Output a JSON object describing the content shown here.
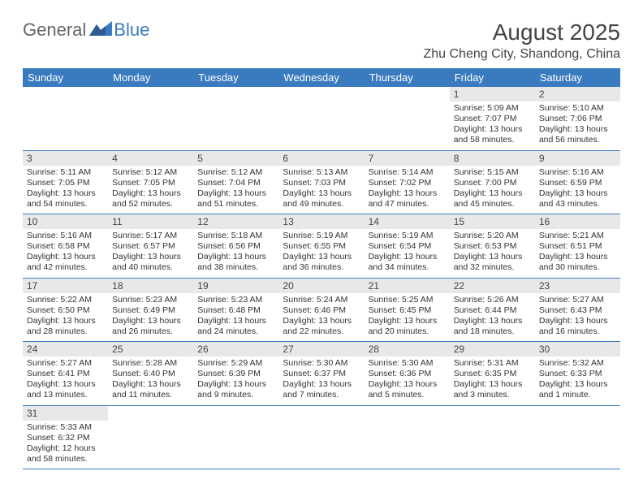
{
  "logo": {
    "part1": "General",
    "part2": "Blue"
  },
  "title": "August 2025",
  "location": "Zhu Cheng City, Shandong, China",
  "colors": {
    "header_bg": "#3a7bbf",
    "header_text": "#ffffff",
    "daynum_bg": "#e8e8e8",
    "border": "#3a7bbf",
    "text": "#333333",
    "page_bg": "#ffffff"
  },
  "fonts": {
    "title_size_pt": 28,
    "location_size_pt": 16,
    "dayhead_size_pt": 13,
    "daynum_size_pt": 12,
    "cell_size_pt": 10.5
  },
  "daysOfWeek": [
    "Sunday",
    "Monday",
    "Tuesday",
    "Wednesday",
    "Thursday",
    "Friday",
    "Saturday"
  ],
  "grid": [
    [
      null,
      null,
      null,
      null,
      null,
      {
        "n": "1",
        "sr": "5:09 AM",
        "ss": "7:07 PM",
        "dl": "13 hours and 58 minutes."
      },
      {
        "n": "2",
        "sr": "5:10 AM",
        "ss": "7:06 PM",
        "dl": "13 hours and 56 minutes."
      }
    ],
    [
      {
        "n": "3",
        "sr": "5:11 AM",
        "ss": "7:05 PM",
        "dl": "13 hours and 54 minutes."
      },
      {
        "n": "4",
        "sr": "5:12 AM",
        "ss": "7:05 PM",
        "dl": "13 hours and 52 minutes."
      },
      {
        "n": "5",
        "sr": "5:12 AM",
        "ss": "7:04 PM",
        "dl": "13 hours and 51 minutes."
      },
      {
        "n": "6",
        "sr": "5:13 AM",
        "ss": "7:03 PM",
        "dl": "13 hours and 49 minutes."
      },
      {
        "n": "7",
        "sr": "5:14 AM",
        "ss": "7:02 PM",
        "dl": "13 hours and 47 minutes."
      },
      {
        "n": "8",
        "sr": "5:15 AM",
        "ss": "7:00 PM",
        "dl": "13 hours and 45 minutes."
      },
      {
        "n": "9",
        "sr": "5:16 AM",
        "ss": "6:59 PM",
        "dl": "13 hours and 43 minutes."
      }
    ],
    [
      {
        "n": "10",
        "sr": "5:16 AM",
        "ss": "6:58 PM",
        "dl": "13 hours and 42 minutes."
      },
      {
        "n": "11",
        "sr": "5:17 AM",
        "ss": "6:57 PM",
        "dl": "13 hours and 40 minutes."
      },
      {
        "n": "12",
        "sr": "5:18 AM",
        "ss": "6:56 PM",
        "dl": "13 hours and 38 minutes."
      },
      {
        "n": "13",
        "sr": "5:19 AM",
        "ss": "6:55 PM",
        "dl": "13 hours and 36 minutes."
      },
      {
        "n": "14",
        "sr": "5:19 AM",
        "ss": "6:54 PM",
        "dl": "13 hours and 34 minutes."
      },
      {
        "n": "15",
        "sr": "5:20 AM",
        "ss": "6:53 PM",
        "dl": "13 hours and 32 minutes."
      },
      {
        "n": "16",
        "sr": "5:21 AM",
        "ss": "6:51 PM",
        "dl": "13 hours and 30 minutes."
      }
    ],
    [
      {
        "n": "17",
        "sr": "5:22 AM",
        "ss": "6:50 PM",
        "dl": "13 hours and 28 minutes."
      },
      {
        "n": "18",
        "sr": "5:23 AM",
        "ss": "6:49 PM",
        "dl": "13 hours and 26 minutes."
      },
      {
        "n": "19",
        "sr": "5:23 AM",
        "ss": "6:48 PM",
        "dl": "13 hours and 24 minutes."
      },
      {
        "n": "20",
        "sr": "5:24 AM",
        "ss": "6:46 PM",
        "dl": "13 hours and 22 minutes."
      },
      {
        "n": "21",
        "sr": "5:25 AM",
        "ss": "6:45 PM",
        "dl": "13 hours and 20 minutes."
      },
      {
        "n": "22",
        "sr": "5:26 AM",
        "ss": "6:44 PM",
        "dl": "13 hours and 18 minutes."
      },
      {
        "n": "23",
        "sr": "5:27 AM",
        "ss": "6:43 PM",
        "dl": "13 hours and 16 minutes."
      }
    ],
    [
      {
        "n": "24",
        "sr": "5:27 AM",
        "ss": "6:41 PM",
        "dl": "13 hours and 13 minutes."
      },
      {
        "n": "25",
        "sr": "5:28 AM",
        "ss": "6:40 PM",
        "dl": "13 hours and 11 minutes."
      },
      {
        "n": "26",
        "sr": "5:29 AM",
        "ss": "6:39 PM",
        "dl": "13 hours and 9 minutes."
      },
      {
        "n": "27",
        "sr": "5:30 AM",
        "ss": "6:37 PM",
        "dl": "13 hours and 7 minutes."
      },
      {
        "n": "28",
        "sr": "5:30 AM",
        "ss": "6:36 PM",
        "dl": "13 hours and 5 minutes."
      },
      {
        "n": "29",
        "sr": "5:31 AM",
        "ss": "6:35 PM",
        "dl": "13 hours and 3 minutes."
      },
      {
        "n": "30",
        "sr": "5:32 AM",
        "ss": "6:33 PM",
        "dl": "13 hours and 1 minute."
      }
    ],
    [
      {
        "n": "31",
        "sr": "5:33 AM",
        "ss": "6:32 PM",
        "dl": "12 hours and 58 minutes."
      },
      null,
      null,
      null,
      null,
      null,
      null
    ]
  ],
  "labels": {
    "sunrise": "Sunrise: ",
    "sunset": "Sunset: ",
    "daylight": "Daylight: "
  }
}
